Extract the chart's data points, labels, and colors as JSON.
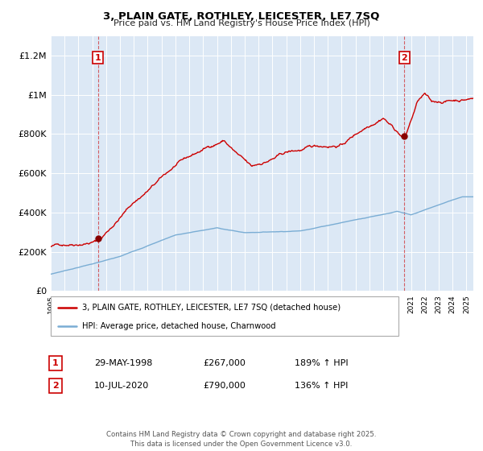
{
  "title": "3, PLAIN GATE, ROTHLEY, LEICESTER, LE7 7SQ",
  "subtitle": "Price paid vs. HM Land Registry's House Price Index (HPI)",
  "legend_entry1": "3, PLAIN GATE, ROTHLEY, LEICESTER, LE7 7SQ (detached house)",
  "legend_entry2": "HPI: Average price, detached house, Charnwood",
  "footer": "Contains HM Land Registry data © Crown copyright and database right 2025.\nThis data is licensed under the Open Government Licence v3.0.",
  "sale1_date": "29-MAY-1998",
  "sale1_price": "£267,000",
  "sale1_hpi": "189% ↑ HPI",
  "sale2_date": "10-JUL-2020",
  "sale2_price": "£790,000",
  "sale2_hpi": "136% ↑ HPI",
  "sale1_year": 1998.41,
  "sale1_value": 267000,
  "sale2_year": 2020.53,
  "sale2_value": 790000,
  "hpi_color": "#7aadd4",
  "price_color": "#cc0000",
  "plot_background": "#dce8f5",
  "ylim": [
    0,
    1300000
  ],
  "xlim_start": 1995,
  "xlim_end": 2025.5,
  "yticks": [
    0,
    200000,
    400000,
    600000,
    800000,
    1000000,
    1200000
  ],
  "ytick_labels": [
    "£0",
    "£200K",
    "£400K",
    "£600K",
    "£800K",
    "£1M",
    "£1.2M"
  ]
}
